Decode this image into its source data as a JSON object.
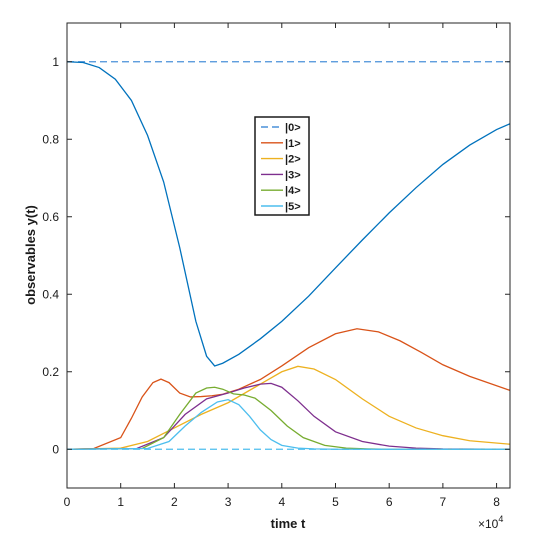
{
  "chart_data": {
    "type": "line",
    "xlabel": "time t",
    "ylabel": "observables y(t)",
    "x_exponent_label": "×10",
    "x_exponent_power": "4",
    "xlim": [
      0,
      8.25
    ],
    "ylim": [
      -0.1,
      1.1
    ],
    "x_unit_scale": 10000,
    "xticks": [
      0,
      1,
      2,
      3,
      4,
      5,
      6,
      7,
      8
    ],
    "xtick_labels": [
      "0",
      "1",
      "2",
      "3",
      "4",
      "5",
      "6",
      "7",
      "8"
    ],
    "yticks": [
      0,
      0.2,
      0.4,
      0.6,
      0.8,
      1
    ],
    "ytick_labels": [
      "0",
      "0.2",
      "0.4",
      "0.6",
      "0.8",
      "1"
    ],
    "grid": false,
    "legend_position": "center-right",
    "series": [
      {
        "name": "|0>",
        "color": "#4a90d9",
        "dash": true,
        "x": [
          0,
          8.25
        ],
        "y": [
          1,
          1
        ]
      },
      {
        "name": "|1>",
        "color": "#d95319",
        "dash": false,
        "x": [
          0,
          0.5,
          1.0,
          1.2,
          1.4,
          1.6,
          1.75,
          1.9,
          2.1,
          2.3,
          2.5,
          2.7,
          2.9,
          3.2,
          3.6,
          4.0,
          4.5,
          5.0,
          5.4,
          5.8,
          6.2,
          6.6,
          7.0,
          7.5,
          8.25
        ],
        "y": [
          0,
          0.002,
          0.03,
          0.08,
          0.135,
          0.172,
          0.181,
          0.172,
          0.145,
          0.135,
          0.136,
          0.138,
          0.142,
          0.155,
          0.18,
          0.215,
          0.262,
          0.298,
          0.311,
          0.303,
          0.28,
          0.25,
          0.218,
          0.188,
          0.152
        ]
      },
      {
        "name": "|2>",
        "color": "#edb120",
        "dash": false,
        "x": [
          0,
          1.0,
          1.5,
          2.0,
          2.5,
          3.0,
          3.5,
          4.0,
          4.3,
          4.6,
          5.0,
          5.5,
          6.0,
          6.5,
          7.0,
          7.5,
          8.25
        ],
        "y": [
          0,
          0.003,
          0.02,
          0.055,
          0.09,
          0.12,
          0.16,
          0.2,
          0.214,
          0.207,
          0.18,
          0.13,
          0.085,
          0.055,
          0.035,
          0.022,
          0.013
        ]
      },
      {
        "name": "|3>",
        "color": "#7e2f8e",
        "dash": false,
        "x": [
          0,
          1.3,
          1.8,
          2.2,
          2.6,
          3.0,
          3.3,
          3.6,
          3.8,
          4.0,
          4.3,
          4.6,
          5.0,
          5.5,
          6.0,
          6.5,
          7.0,
          8.25
        ],
        "y": [
          0,
          0.002,
          0.03,
          0.09,
          0.13,
          0.145,
          0.158,
          0.168,
          0.17,
          0.16,
          0.125,
          0.085,
          0.045,
          0.02,
          0.008,
          0.003,
          0.001,
          0
        ]
      },
      {
        "name": "|4>",
        "color": "#77ac30",
        "dash": false,
        "x": [
          0,
          1.4,
          1.8,
          2.1,
          2.4,
          2.6,
          2.75,
          2.9,
          3.1,
          3.3,
          3.5,
          3.8,
          4.1,
          4.4,
          4.8,
          5.2,
          5.6,
          6.0,
          8.25
        ],
        "y": [
          0,
          0.002,
          0.03,
          0.09,
          0.145,
          0.158,
          0.16,
          0.155,
          0.143,
          0.14,
          0.132,
          0.1,
          0.06,
          0.03,
          0.01,
          0.003,
          0.001,
          0,
          0
        ]
      },
      {
        "name": "|5>",
        "color": "#4dbeee",
        "dash": false,
        "x": [
          0,
          1.5,
          1.9,
          2.2,
          2.5,
          2.8,
          3.0,
          3.2,
          3.4,
          3.6,
          3.8,
          4.0,
          4.3,
          4.6,
          5.0,
          8.25
        ],
        "y": [
          0,
          0.002,
          0.02,
          0.06,
          0.095,
          0.122,
          0.128,
          0.115,
          0.085,
          0.05,
          0.025,
          0.01,
          0.003,
          0.001,
          0,
          0
        ]
      },
      {
        "name": "|0>",
        "color": "#0072bd",
        "dash": false,
        "legend": false,
        "x": [
          0,
          0.3,
          0.6,
          0.9,
          1.2,
          1.5,
          1.8,
          2.1,
          2.4,
          2.6,
          2.75,
          2.9,
          3.2,
          3.6,
          4.0,
          4.5,
          5.0,
          5.5,
          6.0,
          6.5,
          7.0,
          7.5,
          8.0,
          8.25
        ],
        "y": [
          1,
          0.998,
          0.985,
          0.955,
          0.9,
          0.81,
          0.69,
          0.52,
          0.33,
          0.24,
          0.215,
          0.222,
          0.245,
          0.285,
          0.33,
          0.395,
          0.468,
          0.54,
          0.61,
          0.675,
          0.735,
          0.785,
          0.825,
          0.84
        ]
      },
      {
        "name": "|5>",
        "color": "#4dbeee",
        "dash": true,
        "legend": false,
        "x": [
          0,
          8.25
        ],
        "y": [
          0,
          0
        ]
      }
    ]
  }
}
